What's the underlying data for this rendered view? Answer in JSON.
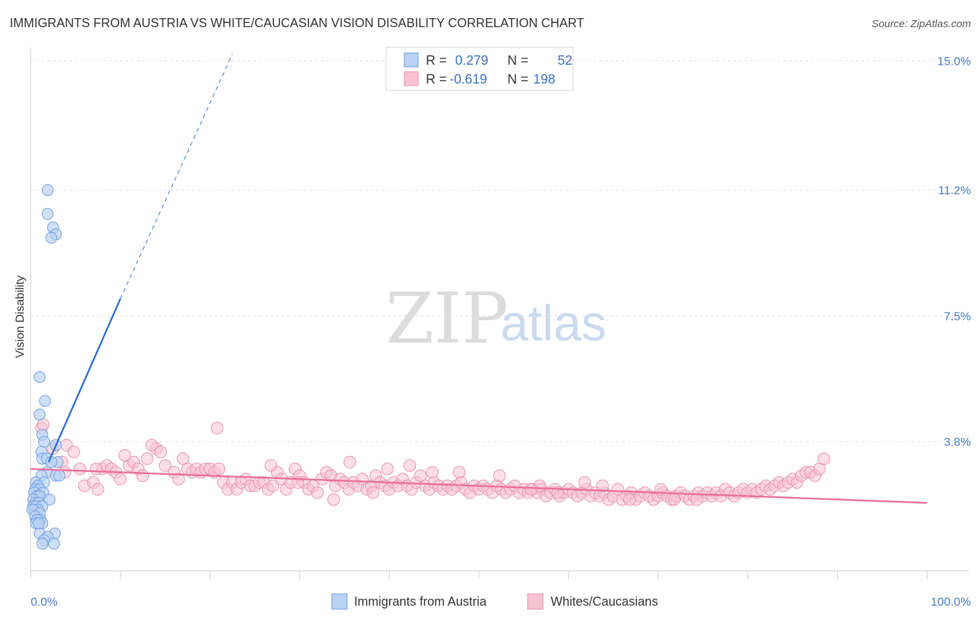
{
  "header": {
    "title": "IMMIGRANTS FROM AUSTRIA VS WHITE/CAUCASIAN VISION DISABILITY CORRELATION CHART",
    "source": "Source: ZipAtlas.com"
  },
  "watermark": {
    "zip": "ZIP",
    "atlas": "atlas"
  },
  "legend": {
    "r_label": "R =",
    "n_label": "N =",
    "series": [
      {
        "name": "Immigrants from Austria",
        "r": "0.279",
        "n": "52"
      },
      {
        "name": "Whites/Caucasians",
        "r": "-0.619",
        "n": "198"
      }
    ]
  },
  "colors": {
    "blue_fill": "#b9d1f2",
    "blue_stroke": "#6e9fe0",
    "blue_line": "#2f6fd0",
    "pink_fill": "#f7c3d3",
    "pink_stroke": "#e891ae",
    "pink_line": "#e87099",
    "grid": "#e2e2e2",
    "axis_text": "#4a7cc9"
  },
  "chart_data": {
    "type": "scatter",
    "title": "IMMIGRANTS FROM AUSTRIA VS WHITE/CAUCASIAN VISION DISABILITY CORRELATION CHART",
    "xlabel": "",
    "ylabel": "Vision Disability",
    "xlim": [
      0,
      100
    ],
    "ylim": [
      0,
      15.4
    ],
    "x_tick_labels": [
      "0.0%",
      "100.0%"
    ],
    "y_ticks": [
      3.8,
      7.5,
      11.2,
      15.0
    ],
    "y_tick_labels": [
      "3.8%",
      "7.5%",
      "11.2%",
      "15.0%"
    ],
    "grid": true,
    "series": [
      {
        "name": "Immigrants from Austria",
        "color": "blue",
        "points": [
          [
            1.9,
            11.2
          ],
          [
            1.9,
            10.5
          ],
          [
            2.5,
            10.1
          ],
          [
            2.8,
            9.9
          ],
          [
            2.3,
            9.8
          ],
          [
            1.0,
            5.7
          ],
          [
            1.6,
            5.0
          ],
          [
            1.0,
            4.6
          ],
          [
            1.3,
            4.0
          ],
          [
            1.5,
            3.8
          ],
          [
            2.8,
            3.7
          ],
          [
            1.2,
            3.5
          ],
          [
            1.3,
            3.3
          ],
          [
            1.8,
            3.3
          ],
          [
            3.0,
            3.2
          ],
          [
            2.3,
            3.2
          ],
          [
            1.8,
            2.9
          ],
          [
            1.2,
            2.8
          ],
          [
            2.8,
            2.8
          ],
          [
            3.2,
            2.8
          ],
          [
            0.6,
            2.6
          ],
          [
            1.5,
            2.6
          ],
          [
            0.8,
            2.5
          ],
          [
            0.5,
            2.4
          ],
          [
            1.0,
            2.4
          ],
          [
            1.4,
            2.3
          ],
          [
            0.4,
            2.3
          ],
          [
            0.7,
            2.2
          ],
          [
            1.0,
            2.2
          ],
          [
            2.1,
            2.1
          ],
          [
            0.3,
            2.1
          ],
          [
            0.5,
            2.0
          ],
          [
            0.9,
            2.0
          ],
          [
            0.3,
            1.9
          ],
          [
            0.6,
            1.9
          ],
          [
            1.3,
            1.9
          ],
          [
            0.4,
            1.8
          ],
          [
            0.8,
            1.8
          ],
          [
            0.2,
            1.8
          ],
          [
            1.0,
            1.7
          ],
          [
            0.5,
            1.6
          ],
          [
            1.1,
            1.5
          ],
          [
            0.7,
            1.5
          ],
          [
            1.3,
            1.4
          ],
          [
            0.6,
            1.4
          ],
          [
            1.0,
            1.1
          ],
          [
            2.7,
            1.1
          ],
          [
            1.9,
            1.0
          ],
          [
            1.5,
            0.9
          ],
          [
            2.6,
            0.8
          ],
          [
            1.3,
            0.8
          ],
          [
            0.9,
            1.4
          ]
        ],
        "trend": {
          "x": [
            2.0,
            10.0
          ],
          "y": [
            3.2,
            8.0
          ],
          "dashed_to": [
            22.5,
            15.2
          ]
        }
      },
      {
        "name": "Whites/Caucasians",
        "color": "pink",
        "points": [
          [
            1.2,
            4.2
          ],
          [
            1.4,
            4.3
          ],
          [
            2.5,
            3.6
          ],
          [
            4.0,
            3.7
          ],
          [
            4.8,
            3.5
          ],
          [
            3.5,
            3.2
          ],
          [
            3.8,
            2.9
          ],
          [
            5.5,
            3.0
          ],
          [
            6.0,
            2.5
          ],
          [
            7.0,
            2.6
          ],
          [
            7.5,
            2.4
          ],
          [
            8.0,
            3.0
          ],
          [
            8.5,
            3.1
          ],
          [
            9.0,
            3.0
          ],
          [
            9.5,
            2.9
          ],
          [
            10.0,
            2.7
          ],
          [
            11.0,
            3.1
          ],
          [
            11.5,
            3.2
          ],
          [
            12.0,
            3.0
          ],
          [
            12.5,
            2.8
          ],
          [
            10.5,
            3.4
          ],
          [
            13.0,
            3.3
          ],
          [
            14.0,
            3.6
          ],
          [
            14.5,
            3.5
          ],
          [
            15.0,
            3.1
          ],
          [
            16.0,
            2.9
          ],
          [
            13.5,
            3.7
          ],
          [
            17.0,
            3.3
          ],
          [
            17.5,
            3.0
          ],
          [
            18.0,
            2.9
          ],
          [
            18.5,
            3.0
          ],
          [
            19.0,
            2.9
          ],
          [
            19.5,
            3.0
          ],
          [
            20.0,
            3.0
          ],
          [
            20.5,
            2.9
          ],
          [
            21.0,
            3.0
          ],
          [
            21.5,
            2.6
          ],
          [
            22.0,
            2.4
          ],
          [
            22.5,
            2.6
          ],
          [
            23.0,
            2.4
          ],
          [
            23.5,
            2.6
          ],
          [
            24.0,
            2.7
          ],
          [
            24.5,
            2.5
          ],
          [
            25.0,
            2.5
          ],
          [
            25.5,
            2.6
          ],
          [
            26.0,
            2.6
          ],
          [
            26.5,
            2.4
          ],
          [
            27.0,
            2.5
          ],
          [
            27.5,
            2.9
          ],
          [
            28.0,
            2.7
          ],
          [
            28.5,
            2.4
          ],
          [
            29.0,
            2.6
          ],
          [
            29.5,
            3.0
          ],
          [
            30.0,
            2.8
          ],
          [
            30.5,
            2.6
          ],
          [
            31.0,
            2.4
          ],
          [
            31.5,
            2.5
          ],
          [
            32.0,
            2.3
          ],
          [
            32.5,
            2.7
          ],
          [
            33.0,
            2.9
          ],
          [
            33.5,
            2.8
          ],
          [
            34.0,
            2.5
          ],
          [
            34.5,
            2.7
          ],
          [
            35.0,
            2.6
          ],
          [
            35.5,
            2.4
          ],
          [
            36.0,
            2.6
          ],
          [
            36.5,
            2.5
          ],
          [
            37.0,
            2.7
          ],
          [
            37.5,
            2.4
          ],
          [
            38.0,
            2.5
          ],
          [
            38.5,
            2.8
          ],
          [
            39.0,
            2.6
          ],
          [
            39.5,
            2.5
          ],
          [
            40.0,
            2.4
          ],
          [
            40.5,
            2.6
          ],
          [
            41.0,
            2.5
          ],
          [
            41.5,
            2.7
          ],
          [
            42.0,
            2.5
          ],
          [
            42.5,
            2.4
          ],
          [
            43.0,
            2.6
          ],
          [
            43.5,
            2.8
          ],
          [
            44.0,
            2.5
          ],
          [
            44.5,
            2.4
          ],
          [
            45.0,
            2.6
          ],
          [
            45.5,
            2.5
          ],
          [
            46.0,
            2.4
          ],
          [
            46.5,
            2.5
          ],
          [
            47.0,
            2.4
          ],
          [
            47.5,
            2.5
          ],
          [
            48.0,
            2.6
          ],
          [
            48.5,
            2.4
          ],
          [
            49.0,
            2.3
          ],
          [
            49.5,
            2.5
          ],
          [
            50.0,
            2.4
          ],
          [
            50.5,
            2.5
          ],
          [
            51.0,
            2.4
          ],
          [
            51.5,
            2.3
          ],
          [
            52.0,
            2.5
          ],
          [
            52.5,
            2.4
          ],
          [
            53.0,
            2.3
          ],
          [
            53.5,
            2.4
          ],
          [
            54.0,
            2.5
          ],
          [
            54.5,
            2.3
          ],
          [
            55.0,
            2.4
          ],
          [
            55.5,
            2.3
          ],
          [
            56.0,
            2.4
          ],
          [
            56.5,
            2.3
          ],
          [
            57.0,
            2.4
          ],
          [
            57.5,
            2.2
          ],
          [
            58.0,
            2.3
          ],
          [
            58.5,
            2.4
          ],
          [
            59.0,
            2.2
          ],
          [
            59.5,
            2.3
          ],
          [
            60.0,
            2.4
          ],
          [
            60.5,
            2.3
          ],
          [
            61.0,
            2.2
          ],
          [
            61.5,
            2.3
          ],
          [
            62.0,
            2.4
          ],
          [
            62.5,
            2.2
          ],
          [
            63.0,
            2.3
          ],
          [
            63.5,
            2.2
          ],
          [
            64.0,
            2.3
          ],
          [
            64.5,
            2.1
          ],
          [
            65.0,
            2.2
          ],
          [
            65.5,
            2.4
          ],
          [
            66.0,
            2.1
          ],
          [
            66.5,
            2.2
          ],
          [
            67.0,
            2.3
          ],
          [
            67.5,
            2.1
          ],
          [
            68.0,
            2.2
          ],
          [
            68.5,
            2.3
          ],
          [
            69.0,
            2.2
          ],
          [
            69.5,
            2.1
          ],
          [
            70.0,
            2.2
          ],
          [
            70.5,
            2.3
          ],
          [
            71.0,
            2.2
          ],
          [
            71.5,
            2.1
          ],
          [
            72.0,
            2.2
          ],
          [
            72.5,
            2.3
          ],
          [
            73.0,
            2.2
          ],
          [
            73.5,
            2.1
          ],
          [
            74.0,
            2.2
          ],
          [
            74.5,
            2.3
          ],
          [
            75.0,
            2.2
          ],
          [
            75.5,
            2.3
          ],
          [
            76.0,
            2.2
          ],
          [
            76.5,
            2.3
          ],
          [
            77.0,
            2.2
          ],
          [
            77.5,
            2.4
          ],
          [
            78.0,
            2.3
          ],
          [
            78.5,
            2.2
          ],
          [
            79.0,
            2.3
          ],
          [
            79.5,
            2.4
          ],
          [
            80.0,
            2.3
          ],
          [
            80.5,
            2.4
          ],
          [
            81.0,
            2.3
          ],
          [
            81.5,
            2.4
          ],
          [
            82.0,
            2.5
          ],
          [
            82.5,
            2.4
          ],
          [
            83.0,
            2.5
          ],
          [
            83.5,
            2.6
          ],
          [
            84.0,
            2.5
          ],
          [
            84.5,
            2.6
          ],
          [
            85.0,
            2.7
          ],
          [
            85.5,
            2.6
          ],
          [
            86.0,
            2.8
          ],
          [
            86.5,
            2.9
          ],
          [
            87.0,
            2.9
          ],
          [
            87.5,
            2.8
          ],
          [
            88.0,
            3.0
          ],
          [
            88.5,
            3.3
          ],
          [
            16.5,
            2.7
          ],
          [
            26.8,
            3.1
          ],
          [
            33.8,
            2.1
          ],
          [
            38.2,
            2.3
          ],
          [
            44.8,
            2.9
          ],
          [
            47.8,
            2.9
          ],
          [
            52.3,
            2.8
          ],
          [
            56.8,
            2.5
          ],
          [
            61.8,
            2.6
          ],
          [
            66.8,
            2.1
          ],
          [
            71.8,
            2.1
          ],
          [
            35.6,
            3.2
          ],
          [
            39.8,
            3.0
          ],
          [
            42.3,
            3.1
          ],
          [
            7.3,
            3.0
          ],
          [
            29.8,
            2.6
          ],
          [
            55.8,
            2.4
          ],
          [
            63.8,
            2.5
          ],
          [
            70.3,
            2.4
          ],
          [
            20.8,
            4.2
          ],
          [
            58.8,
            2.3
          ],
          [
            74.3,
            2.1
          ]
        ],
        "trend": {
          "x": [
            0,
            100
          ],
          "y": [
            3.0,
            2.0
          ]
        }
      }
    ]
  },
  "bottom_legend": [
    "Immigrants from Austria",
    "Whites/Caucasians"
  ]
}
